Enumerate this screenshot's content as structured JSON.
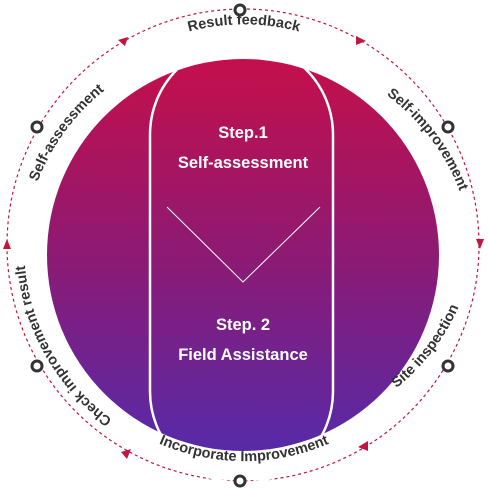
{
  "center": {
    "step1": {
      "line1": "Step.1",
      "line2": "Self-assessment"
    },
    "step2": {
      "line1": "Step. 2",
      "line2": "Field Assistance"
    }
  },
  "ring_labels": {
    "top": "Result feedback",
    "upper_right": "Self-improvement",
    "lower_right": "Site inspection",
    "bottom": "Incorporate Improvement",
    "lower_left": "Check improvement result",
    "upper_left": "Self-assessment"
  },
  "colors": {
    "gradient_top": "#c0104d",
    "gradient_bottom": "#5a2aa6",
    "accent": "#c1163f",
    "text": "#333333"
  }
}
